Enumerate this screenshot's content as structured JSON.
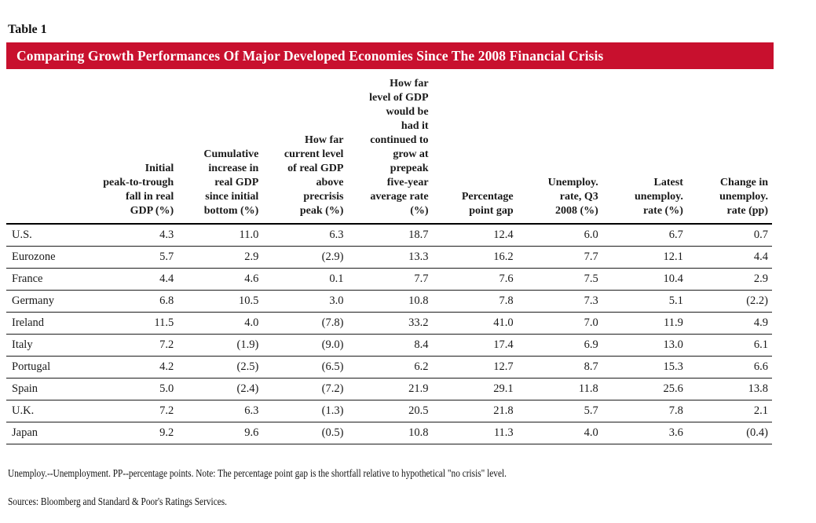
{
  "page": {
    "table_label": "Table 1",
    "title": "Comparing Growth Performances Of Major Developed Economies Since The 2008 Financial Crisis",
    "title_bar_color": "#C8102E",
    "title_text_color": "#FFFFFF"
  },
  "table": {
    "headers": [
      "Initial\npeak-to-trough\nfall in real\nGDP (%)",
      "Cumulative\nincrease in\nreal GDP\nsince initial\nbottom (%)",
      "How far\ncurrent level\nof real GDP\nabove\nprecrisis\npeak (%)",
      "How far\nlevel of GDP\nwould be\nhad it\ncontinued to\ngrow at\nprepeak\nfive-year\naverage rate\n(%)",
      "Percentage\npoint gap",
      "Unemploy.\nrate, Q3\n2008 (%)",
      "Latest\nunemploy.\nrate (%)",
      "Change in\nunemploy.\nrate (pp)"
    ],
    "rows": [
      {
        "label": "U.S.",
        "values": [
          "4.3",
          "11.0",
          "6.3",
          "18.7",
          "12.4",
          "6.0",
          "6.7",
          "0.7"
        ]
      },
      {
        "label": "Eurozone",
        "values": [
          "5.7",
          "2.9",
          "(2.9)",
          "13.3",
          "16.2",
          "7.7",
          "12.1",
          "4.4"
        ]
      },
      {
        "label": "France",
        "values": [
          "4.4",
          "4.6",
          "0.1",
          "7.7",
          "7.6",
          "7.5",
          "10.4",
          "2.9"
        ]
      },
      {
        "label": "Germany",
        "values": [
          "6.8",
          "10.5",
          "3.0",
          "10.8",
          "7.8",
          "7.3",
          "5.1",
          "(2.2)"
        ]
      },
      {
        "label": "Ireland",
        "values": [
          "11.5",
          "4.0",
          "(7.8)",
          "33.2",
          "41.0",
          "7.0",
          "11.9",
          "4.9"
        ]
      },
      {
        "label": "Italy",
        "values": [
          "7.2",
          "(1.9)",
          "(9.0)",
          "8.4",
          "17.4",
          "6.9",
          "13.0",
          "6.1"
        ]
      },
      {
        "label": "Portugal",
        "values": [
          "4.2",
          "(2.5)",
          "(6.5)",
          "6.2",
          "12.7",
          "8.7",
          "15.3",
          "6.6"
        ]
      },
      {
        "label": "Spain",
        "values": [
          "5.0",
          "(2.4)",
          "(7.2)",
          "21.9",
          "29.1",
          "11.8",
          "25.6",
          "13.8"
        ]
      },
      {
        "label": "U.K.",
        "values": [
          "7.2",
          "6.3",
          "(1.3)",
          "20.5",
          "21.8",
          "5.7",
          "7.8",
          "2.1"
        ]
      },
      {
        "label": "Japan",
        "values": [
          "9.2",
          "9.6",
          "(0.5)",
          "10.8",
          "11.3",
          "4.0",
          "3.6",
          "(0.4)"
        ]
      }
    ]
  },
  "footnotes": [
    "Unemploy.--Unemployment. PP--percentage points. Note: The percentage point gap is the shortfall relative to hypothetical \"no crisis\" level.",
    "Sources: Bloomberg and Standard & Poor's Ratings Services."
  ]
}
